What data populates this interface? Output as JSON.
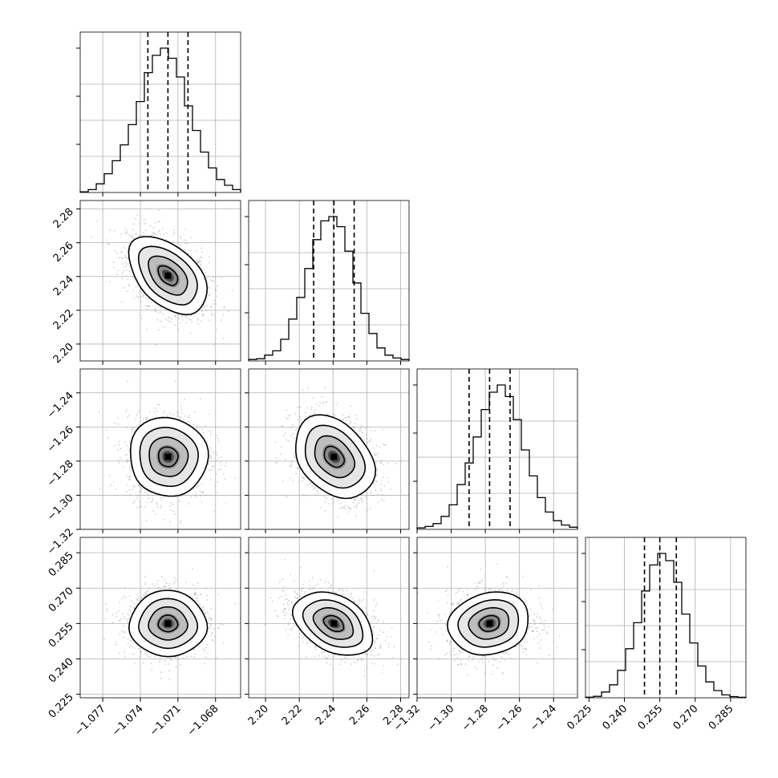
{
  "chart_data": {
    "type": "corner",
    "grid": true,
    "params": [
      {
        "range": [
          -1.0788,
          -1.066
        ],
        "ticks": [
          -1.077,
          -1.074,
          -1.071,
          -1.068
        ],
        "tick_labels": [
          "−1.077",
          "−1.074",
          "−1.071",
          "−1.068"
        ],
        "median": -1.0718,
        "q16": -1.0734,
        "q84": -1.0702,
        "hist": [
          0.005,
          0.02,
          0.06,
          0.13,
          0.22,
          0.33,
          0.47,
          0.63,
          0.83,
          0.95,
          1.0,
          0.93,
          0.8,
          0.6,
          0.43,
          0.28,
          0.17,
          0.09,
          0.05,
          0.02
        ]
      },
      {
        "range": [
          2.19,
          2.285
        ],
        "ticks": [
          2.2,
          2.22,
          2.24,
          2.26,
          2.28
        ],
        "tick_labels": [
          "2.20",
          "2.22",
          "2.24",
          "2.26",
          "2.28"
        ],
        "median": 2.2405,
        "q16": 2.2285,
        "q84": 2.2525,
        "hist": [
          0.01,
          0.015,
          0.04,
          0.07,
          0.15,
          0.29,
          0.44,
          0.64,
          0.84,
          0.97,
          1.0,
          0.93,
          0.76,
          0.54,
          0.33,
          0.19,
          0.09,
          0.04,
          0.02,
          0.01
        ]
      },
      {
        "range": [
          -1.32,
          -1.226
        ],
        "ticks": [
          -1.32,
          -1.3,
          -1.28,
          -1.26,
          -1.24
        ],
        "tick_labels": [
          "−1.32",
          "−1.30",
          "−1.28",
          "−1.26",
          "−1.24"
        ],
        "median": -1.2775,
        "q16": -1.2895,
        "q84": -1.2655,
        "hist": [
          0.01,
          0.02,
          0.04,
          0.09,
          0.17,
          0.31,
          0.46,
          0.64,
          0.83,
          0.95,
          1.0,
          0.92,
          0.76,
          0.55,
          0.37,
          0.22,
          0.12,
          0.06,
          0.03,
          0.015
        ]
      },
      {
        "range": [
          0.2235,
          0.2915
        ],
        "ticks": [
          0.225,
          0.24,
          0.255,
          0.27,
          0.285
        ],
        "tick_labels": [
          "0.225",
          "0.240",
          "0.255",
          "0.270",
          "0.285"
        ],
        "median": 0.255,
        "q16": 0.2485,
        "q84": 0.262,
        "hist": [
          0.004,
          0.01,
          0.04,
          0.09,
          0.19,
          0.34,
          0.52,
          0.74,
          0.92,
          1.0,
          0.95,
          0.8,
          0.58,
          0.38,
          0.22,
          0.11,
          0.05,
          0.02,
          0.008,
          0.003
        ]
      }
    ],
    "pairs": [
      {
        "row": 1,
        "col": 0,
        "mean": [
          -1.0718,
          2.2405
        ],
        "sd": [
          0.00155,
          0.0118
        ],
        "rho": -0.45
      },
      {
        "row": 2,
        "col": 0,
        "mean": [
          -1.0718,
          -1.2775
        ],
        "sd": [
          0.00155,
          0.0118
        ],
        "rho": 0.0
      },
      {
        "row": 2,
        "col": 1,
        "mean": [
          2.2405,
          -1.2775
        ],
        "sd": [
          0.0118,
          0.0118
        ],
        "rho": -0.3
      },
      {
        "row": 3,
        "col": 0,
        "mean": [
          -1.0718,
          0.255
        ],
        "sd": [
          0.00155,
          0.0067
        ],
        "rho": 0.0
      },
      {
        "row": 3,
        "col": 1,
        "mean": [
          2.2405,
          0.255
        ],
        "sd": [
          0.0118,
          0.0067
        ],
        "rho": -0.4
      },
      {
        "row": 3,
        "col": 2,
        "mean": [
          -1.2775,
          0.255
        ],
        "sd": [
          0.0118,
          0.0067
        ],
        "rho": 0.08
      }
    ]
  }
}
